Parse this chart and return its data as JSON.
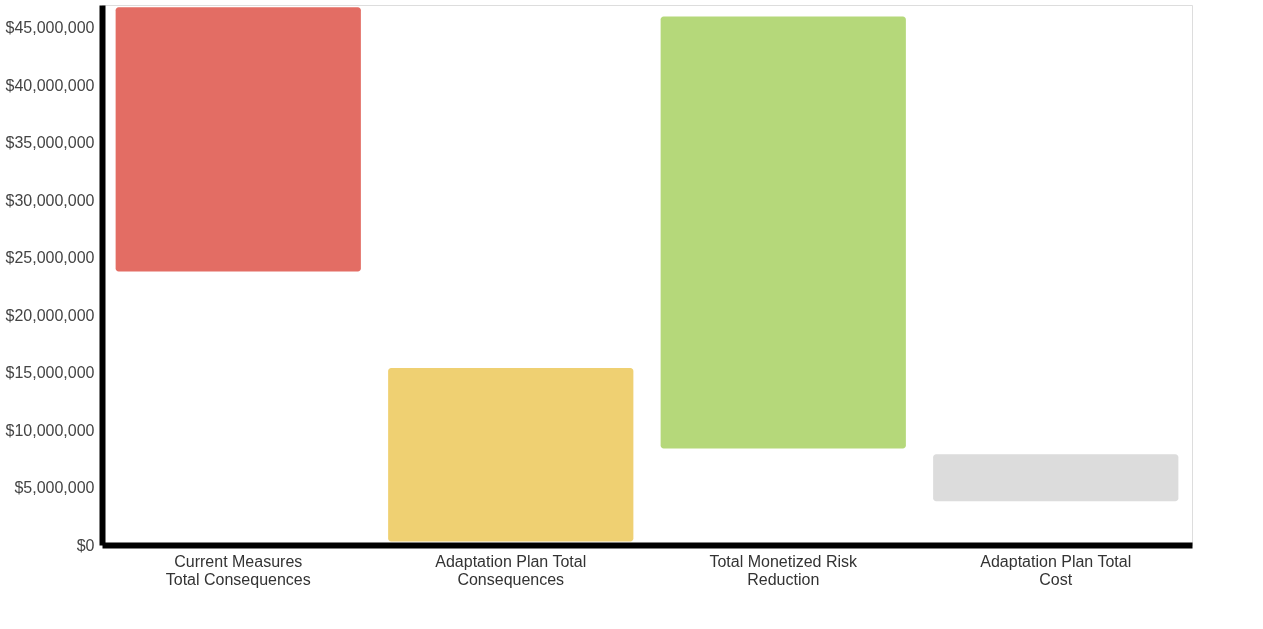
{
  "chart_data": {
    "type": "bar",
    "categories": [
      "Current Measures\nTotal Consequences",
      "Adaptation Plan Total\nConsequences",
      "Total Monetized Risk\nReduction",
      "Adaptation Plan Total\nCost"
    ],
    "base": [
      23800000,
      300000,
      8400000,
      3800000
    ],
    "values": [
      23000000,
      15100000,
      37600000,
      4100000
    ],
    "colors": [
      "#e36d64",
      "#efd072",
      "#b5d87a",
      "#dcdcdc"
    ],
    "ylim": [
      0,
      47000000
    ],
    "yticks": [
      {
        "value": 0,
        "label": "$0"
      },
      {
        "value": 5000000,
        "label": "$5,000,000"
      },
      {
        "value": 10000000,
        "label": "$10,000,000"
      },
      {
        "value": 15000000,
        "label": "$15,000,000"
      },
      {
        "value": 20000000,
        "label": "$20,000,000"
      },
      {
        "value": 25000000,
        "label": "$25,000,000"
      },
      {
        "value": 30000000,
        "label": "$30,000,000"
      },
      {
        "value": 35000000,
        "label": "$35,000,000"
      },
      {
        "value": 40000000,
        "label": "$40,000,000"
      },
      {
        "value": 45000000,
        "label": "$45,000,000"
      }
    ],
    "grid": false
  }
}
